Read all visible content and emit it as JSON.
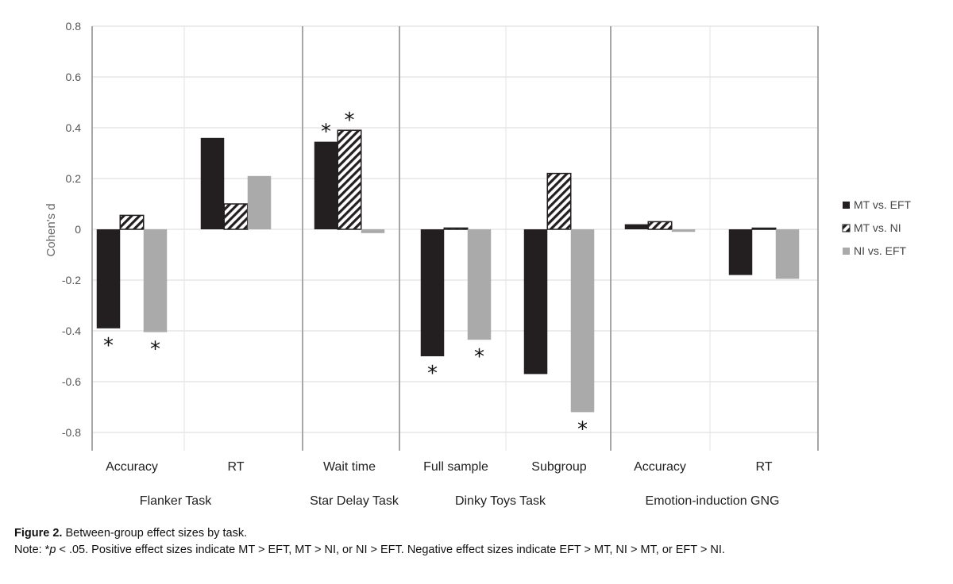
{
  "chart_data": {
    "type": "bar",
    "ylabel": "Cohen's d",
    "ylim": [
      -0.8,
      0.8
    ],
    "yticks": [
      0.8,
      0.6,
      0.4,
      0.2,
      0,
      -0.2,
      -0.4,
      -0.6,
      -0.8
    ],
    "ytick_labels": [
      "0.8",
      "0.6",
      "0.4",
      "0.2",
      "0",
      "-0.2",
      "-0.4",
      "-0.6",
      "-0.8"
    ],
    "legend_position": "right",
    "series": [
      {
        "name": "MT vs. EFT",
        "color": "#231f20",
        "pattern": "solid"
      },
      {
        "name": "MT vs. NI",
        "color": "#ffffff",
        "pattern": "hatch"
      },
      {
        "name": "NI vs. EFT",
        "color": "#aaaaaa",
        "pattern": "solid"
      }
    ],
    "groups": [
      {
        "name": "Flanker Task",
        "categories": [
          "Accuracy",
          "RT"
        ]
      },
      {
        "name": "Star Delay Task",
        "categories": [
          "Wait time"
        ]
      },
      {
        "name": "Dinky Toys Task",
        "categories": [
          "Full sample",
          "Subgroup"
        ]
      },
      {
        "name": "Emotion-induction GNG",
        "categories": [
          "Accuracy",
          "RT"
        ]
      }
    ],
    "categories": [
      "Accuracy",
      "RT",
      "Wait time",
      "Full sample",
      "Subgroup",
      "Accuracy",
      "RT"
    ],
    "values": [
      [
        -0.39,
        0.055,
        -0.405
      ],
      [
        0.36,
        0.1,
        0.21
      ],
      [
        0.345,
        0.39,
        -0.015
      ],
      [
        -0.5,
        0.005,
        -0.435
      ],
      [
        -0.57,
        0.22,
        -0.72
      ],
      [
        0.02,
        0.03,
        -0.01
      ],
      [
        -0.18,
        0.0,
        -0.195
      ]
    ],
    "significance_marks": [
      {
        "category_index": 0,
        "series_index": 0
      },
      {
        "category_index": 0,
        "series_index": 2
      },
      {
        "category_index": 2,
        "series_index": 0
      },
      {
        "category_index": 2,
        "series_index": 1
      },
      {
        "category_index": 3,
        "series_index": 0
      },
      {
        "category_index": 3,
        "series_index": 2
      },
      {
        "category_index": 4,
        "series_index": 2
      }
    ],
    "significance_symbol": "*"
  },
  "caption": {
    "figure_label": "Figure 2.",
    "figure_title": " Between-group effect sizes by task.",
    "note_prefix": "Note: *",
    "note_p": "p",
    "note_rest": " < .05. Positive effect sizes indicate MT > EFT, MT > NI, or NI > EFT. Negative effect sizes indicate EFT > MT, NI > MT, or EFT > NI."
  }
}
